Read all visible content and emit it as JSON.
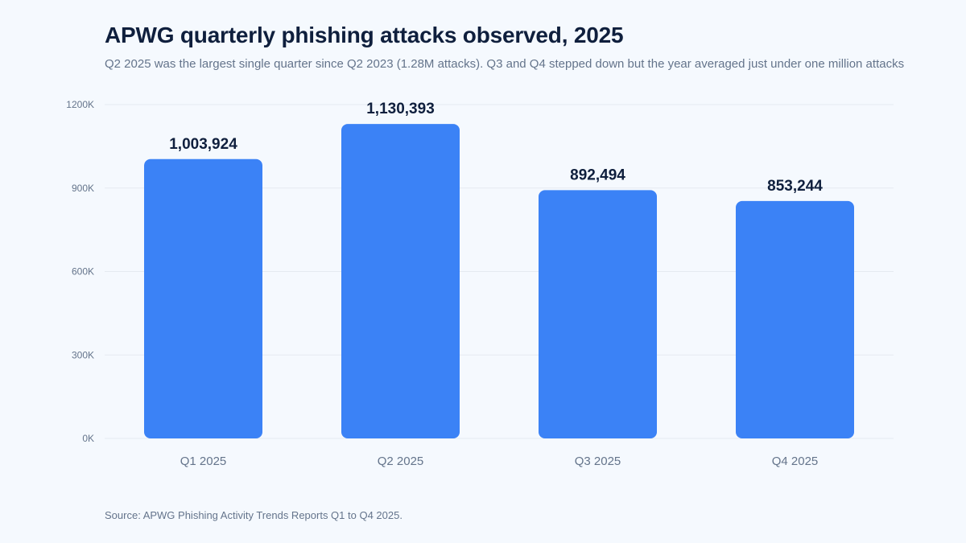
{
  "chart_data": {
    "type": "bar",
    "title": "APWG quarterly phishing attacks observed, 2025",
    "subtitle": "Q2 2025 was the largest single quarter since Q2 2023 (1.28M attacks). Q3 and Q4 stepped down but the year averaged just under one million attacks",
    "categories": [
      "Q1 2025",
      "Q2 2025",
      "Q3 2025",
      "Q4 2025"
    ],
    "values": [
      1003924,
      1130393,
      892494,
      853244
    ],
    "data_labels": [
      "1,003,924",
      "1,130,393",
      "892,494",
      "853,244"
    ],
    "xlabel": "",
    "ylabel": "",
    "ylim": [
      0,
      1200000
    ],
    "yticks": [
      0,
      300000,
      600000,
      900000,
      1200000
    ],
    "ytick_labels": [
      "0K",
      "300K",
      "600K",
      "900K",
      "1200K"
    ],
    "grid": true,
    "bar_color": "#3b82f6",
    "source": "Source: APWG Phishing Activity Trends Reports Q1 to Q4 2025."
  }
}
